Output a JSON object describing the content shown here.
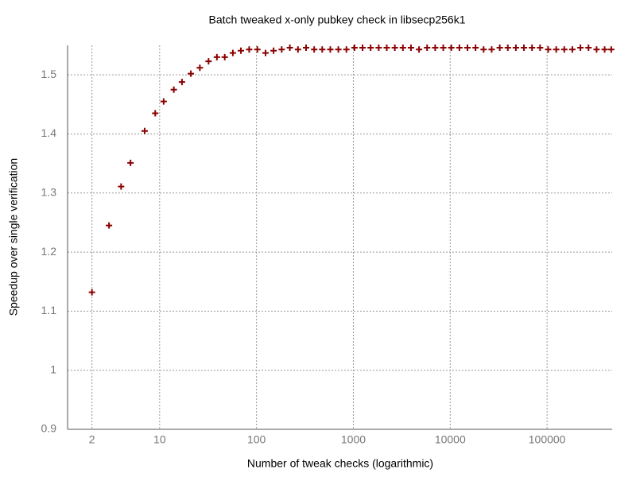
{
  "chart_data": {
    "type": "scatter",
    "title": "Batch tweaked x-only pubkey check in libsecp256k1",
    "x_label": "Number of tweak checks (logarithmic)",
    "y_label": "Speedup over single verification",
    "log_x": true,
    "grid": true,
    "xlim": [
      1.12,
      470000
    ],
    "ylim": [
      0.9,
      1.55
    ],
    "xticks": [
      2,
      10,
      100,
      1000,
      10000,
      100000
    ],
    "yticks": [
      0.9,
      1,
      1.1,
      1.2,
      1.3,
      1.4,
      1.5
    ],
    "series": [
      {
        "color": "#8b0000",
        "x": [
          2,
          3,
          4,
          5,
          7,
          9,
          11,
          14,
          17,
          21,
          26,
          32,
          39,
          47,
          57,
          69,
          84,
          102,
          124,
          150,
          182,
          221,
          268,
          325,
          394,
          477,
          578,
          700,
          848,
          1028,
          1245,
          1508,
          1827,
          2213,
          2681,
          3248,
          3935,
          4767,
          5775,
          6996,
          8476,
          10269,
          12441,
          15072,
          18260,
          22122,
          26800,
          32469,
          39336,
          47655,
          57733,
          69942,
          84733,
          102652,
          124362,
          150663,
          182526,
          221126,
          267889,
          324542,
          393176,
          460000
        ],
        "values": [
          1.132,
          1.245,
          1.311,
          1.351,
          1.405,
          1.435,
          1.455,
          1.475,
          1.488,
          1.502,
          1.512,
          1.523,
          1.53,
          1.53,
          1.537,
          1.541,
          1.543,
          1.543,
          1.537,
          1.541,
          1.543,
          1.546,
          1.543,
          1.546,
          1.543,
          1.543,
          1.543,
          1.543,
          1.543,
          1.546,
          1.546,
          1.546,
          1.546,
          1.546,
          1.546,
          1.546,
          1.546,
          1.543,
          1.546,
          1.546,
          1.546,
          1.546,
          1.546,
          1.546,
          1.546,
          1.543,
          1.543,
          1.546,
          1.546,
          1.546,
          1.546,
          1.546,
          1.546,
          1.543,
          1.543,
          1.543,
          1.543,
          1.546,
          1.546,
          1.543,
          1.543,
          1.543
        ]
      }
    ]
  }
}
